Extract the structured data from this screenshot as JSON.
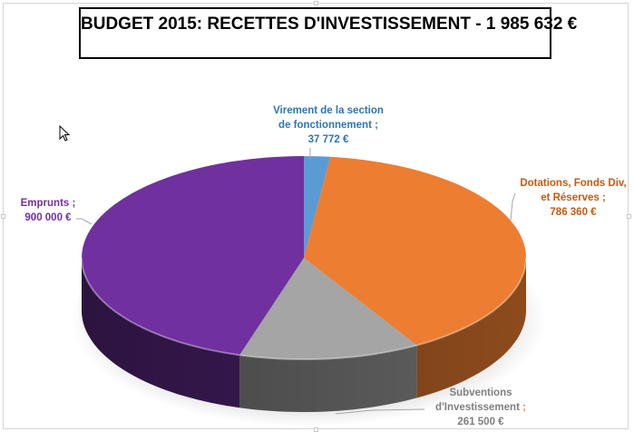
{
  "title": "BUDGET 2015: RECETTES D'INVESTISSEMENT - 1 985 632 €",
  "labels": {
    "virement": {
      "line1": "Virement de la section",
      "line2": "de fonctionnement ;",
      "line3": "37 772 €"
    },
    "dotations": {
      "line1": "Dotations, Fonds Div,",
      "line2": "et Réserves ;",
      "line3": "786 360 €"
    },
    "subventions": {
      "line1": "Subventions",
      "line2": "d'Investissement",
      "sep": " ;",
      "line3": "261 500 €"
    },
    "emprunts": {
      "line1": "Emprunts ;",
      "line2": "900 000 €"
    }
  },
  "colors": {
    "virement": "#5b9bd5",
    "dotations": "#ed7d31",
    "subventions": "#a5a5a5",
    "emprunts": "#7030a0",
    "virement_label": "#2e75b6",
    "dotations_label": "#c55a11",
    "subventions_label": "#7f7f7f",
    "emprunts_label": "#7030a0"
  },
  "chart_data": {
    "type": "pie",
    "title": "BUDGET 2015: RECETTES D'INVESTISSEMENT - 1 985 632 €",
    "style": "3d",
    "categories": [
      "Virement de la section de fonctionnement",
      "Dotations, Fonds Div, et Réserves",
      "Subventions d'Investissement",
      "Emprunts"
    ],
    "values": [
      37772,
      786360,
      261500,
      900000
    ],
    "unit": "€",
    "total": 1985632,
    "data_labels": [
      "37 772 €",
      "786 360 €",
      "261 500 €",
      "900 000 €"
    ],
    "colors": [
      "#5b9bd5",
      "#ed7d31",
      "#a5a5a5",
      "#7030a0"
    ],
    "legend": "none",
    "start_angle": 0,
    "direction": "clockwise"
  }
}
